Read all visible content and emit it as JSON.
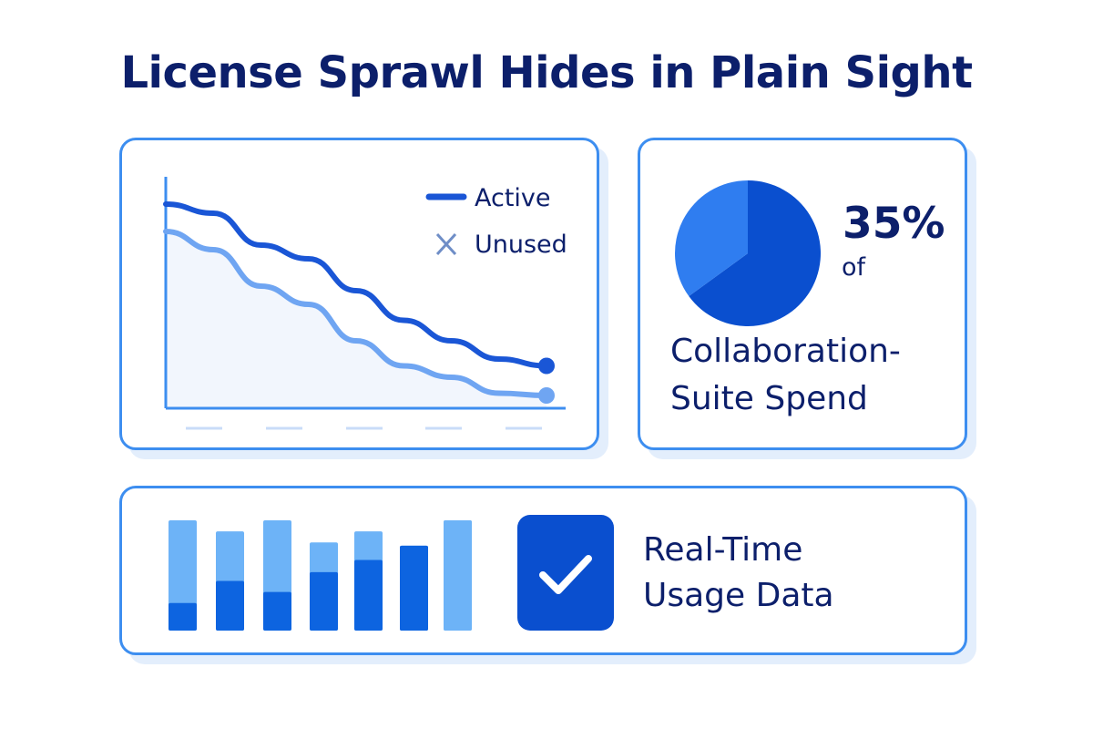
{
  "title": "License Sprawl Hides in Plain Sight",
  "line_card": {
    "legend": [
      {
        "label": "Active",
        "icon": "line-swatch-icon",
        "color": "#1a56d6"
      },
      {
        "label": "Unused",
        "icon": "x-mark-icon",
        "color": "#6fa5f2"
      }
    ]
  },
  "pie_card": {
    "percent": "35%",
    "of_label": "of",
    "caption_line1": "Collaboration-",
    "caption_line2": "Suite Spend",
    "share": 0.35,
    "colors": {
      "highlight": "#2f7df0",
      "rest": "#0a4fcf"
    }
  },
  "bottom_card": {
    "label_line1": "Real-Time",
    "label_line2": "Usage Data",
    "icon": "checkmark-icon",
    "colors": {
      "light": "#6db3f7",
      "mid": "#2f83ee",
      "dark": "#0d64e0"
    }
  },
  "chart_data": [
    {
      "type": "line",
      "series": [
        {
          "name": "Active",
          "values": [
            0.88,
            0.84,
            0.7,
            0.64,
            0.5,
            0.37,
            0.28,
            0.2,
            0.17
          ]
        },
        {
          "name": "Unused",
          "values": [
            0.76,
            0.68,
            0.52,
            0.44,
            0.28,
            0.17,
            0.12,
            0.05,
            0.04
          ]
        }
      ],
      "x": [
        0,
        1,
        2,
        3,
        4,
        5,
        6,
        7,
        8
      ],
      "ylim": [
        0,
        1
      ],
      "grid": false,
      "legend": "top-right"
    },
    {
      "type": "pie",
      "values": [
        35,
        65
      ]
    },
    {
      "type": "bar",
      "series": [
        {
          "name": "",
          "values": [
            0.25,
            0.45,
            0.35,
            0.53,
            0.64,
            0.77,
            1.0
          ]
        },
        {
          "name": "",
          "values": [
            1.0,
            0.9,
            1.0,
            0.8,
            0.9,
            0.77,
            1.0
          ]
        }
      ]
    }
  ]
}
